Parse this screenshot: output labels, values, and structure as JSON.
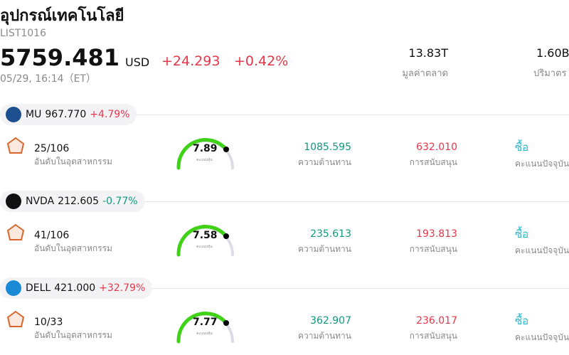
{
  "header": {
    "title": "อุปกรณ์เทคโนโลยี",
    "code": "LIST1016",
    "price": "5759.481",
    "currency": "USD",
    "change": "+24.293",
    "change_pct": "+0.42%",
    "time": "05/29, 16:14（ET）",
    "market_cap": "13.83T",
    "market_cap_label": "มูลค่าตลาด",
    "volume": "1.60B",
    "volume_label": "ปริมาตร"
  },
  "labels": {
    "rank": "อันดับในอุตสาหกรรม",
    "score_caption": "คะแนนหุ้น",
    "resistance": "ความต้านทาน",
    "support": "การสนับสนุน",
    "current_score": "คะแนนปัจจุบัน"
  },
  "stocks": [
    {
      "ticker": "MU",
      "price": "967.770",
      "change": "+4.79%",
      "direction": "up",
      "rank": "25/106",
      "score": "7.89",
      "resistance": "1085.595",
      "support": "632.010",
      "signal": "ซื้อ"
    },
    {
      "ticker": "NVDA",
      "price": "212.605",
      "change": "-0.77%",
      "direction": "down",
      "rank": "41/106",
      "score": "7.58",
      "resistance": "235.613",
      "support": "193.813",
      "signal": "ซื้อ"
    },
    {
      "ticker": "DELL",
      "price": "421.000",
      "change": "+32.79%",
      "direction": "up",
      "rank": "10/33",
      "score": "7.77",
      "resistance": "362.907",
      "support": "236.017",
      "signal": "ซื้อ"
    }
  ]
}
